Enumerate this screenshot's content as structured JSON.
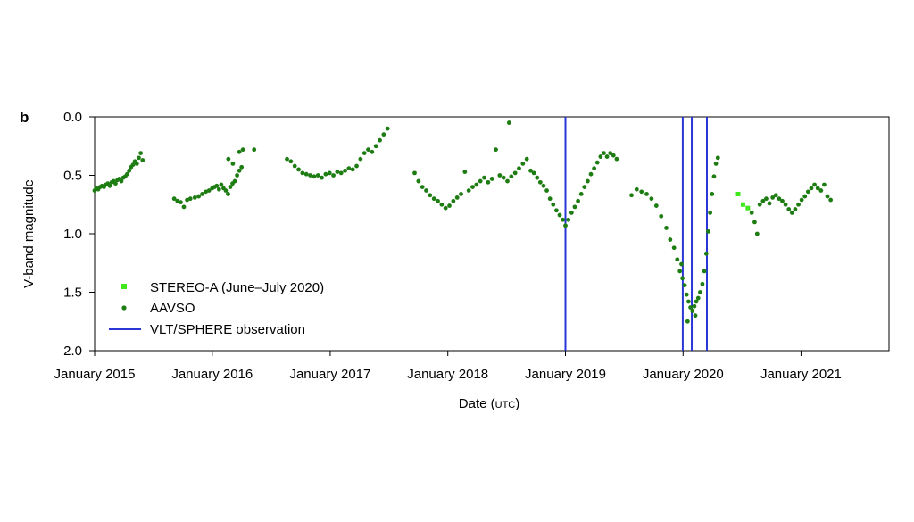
{
  "panel_label": "b",
  "colors": {
    "aavso": "#1e7d12",
    "stereo": "#3fe81c",
    "vlt": "#2a36d6",
    "axis": "#000000"
  },
  "chart_data": {
    "type": "scatter",
    "xlabel": "Date",
    "xlabel_unit": "UTC",
    "ylabel": "V-band magnitude",
    "xlim": [
      "2015-01-01",
      "2021-10-01"
    ],
    "ylim": [
      0.0,
      2.0
    ],
    "y_inverted": true,
    "grid": false,
    "legend_position": "bottom-left",
    "x_ticks": [
      {
        "date": "2015-01-01",
        "label": "January 2015"
      },
      {
        "date": "2016-01-01",
        "label": "January 2016"
      },
      {
        "date": "2017-01-01",
        "label": "January 2017"
      },
      {
        "date": "2018-01-01",
        "label": "January 2018"
      },
      {
        "date": "2019-01-01",
        "label": "January 2019"
      },
      {
        "date": "2020-01-01",
        "label": "January 2020"
      },
      {
        "date": "2021-01-01",
        "label": "January 2021"
      }
    ],
    "y_ticks": [
      {
        "value": 0.0,
        "label": "0.0"
      },
      {
        "value": 0.5,
        "label": "0.5"
      },
      {
        "value": 1.0,
        "label": "1.0"
      },
      {
        "value": 1.5,
        "label": "1.5"
      },
      {
        "value": 2.0,
        "label": "2.0"
      }
    ],
    "legend": [
      {
        "label": "STEREO-A (June–July 2020)",
        "marker": "square"
      },
      {
        "label": "AAVSO",
        "marker": "dot"
      },
      {
        "label": "VLT/SPHERE observation",
        "marker": "line"
      }
    ],
    "vlines": [
      "2019-01-01",
      "2019-12-31",
      "2020-01-28",
      "2020-03-15"
    ],
    "stereo_points": [
      {
        "x": "2020-06-20",
        "y": 0.66
      },
      {
        "x": "2020-07-05",
        "y": 0.75
      },
      {
        "x": "2020-07-20",
        "y": 0.78
      }
    ],
    "aavso_points": [
      {
        "x": "2015-01-01",
        "y": 0.63
      },
      {
        "x": "2015-01-06",
        "y": 0.61
      },
      {
        "x": "2015-01-12",
        "y": 0.62
      },
      {
        "x": "2015-01-18",
        "y": 0.6
      },
      {
        "x": "2015-01-24",
        "y": 0.59
      },
      {
        "x": "2015-01-30",
        "y": 0.6
      },
      {
        "x": "2015-02-05",
        "y": 0.58
      },
      {
        "x": "2015-02-11",
        "y": 0.57
      },
      {
        "x": "2015-02-17",
        "y": 0.59
      },
      {
        "x": "2015-02-23",
        "y": 0.56
      },
      {
        "x": "2015-03-01",
        "y": 0.55
      },
      {
        "x": "2015-03-07",
        "y": 0.57
      },
      {
        "x": "2015-03-13",
        "y": 0.54
      },
      {
        "x": "2015-03-19",
        "y": 0.53
      },
      {
        "x": "2015-03-25",
        "y": 0.55
      },
      {
        "x": "2015-03-31",
        "y": 0.52
      },
      {
        "x": "2015-04-06",
        "y": 0.51
      },
      {
        "x": "2015-04-12",
        "y": 0.49
      },
      {
        "x": "2015-04-18",
        "y": 0.46
      },
      {
        "x": "2015-04-24",
        "y": 0.43
      },
      {
        "x": "2015-04-30",
        "y": 0.41
      },
      {
        "x": "2015-05-06",
        "y": 0.38
      },
      {
        "x": "2015-05-12",
        "y": 0.4
      },
      {
        "x": "2015-05-18",
        "y": 0.35
      },
      {
        "x": "2015-05-24",
        "y": 0.31
      },
      {
        "x": "2015-05-30",
        "y": 0.37
      },
      {
        "x": "2015-09-05",
        "y": 0.7
      },
      {
        "x": "2015-09-15",
        "y": 0.72
      },
      {
        "x": "2015-09-25",
        "y": 0.73
      },
      {
        "x": "2015-10-05",
        "y": 0.77
      },
      {
        "x": "2015-10-15",
        "y": 0.71
      },
      {
        "x": "2015-10-25",
        "y": 0.7
      },
      {
        "x": "2015-11-08",
        "y": 0.69
      },
      {
        "x": "2015-11-20",
        "y": 0.68
      },
      {
        "x": "2015-12-01",
        "y": 0.66
      },
      {
        "x": "2015-12-12",
        "y": 0.64
      },
      {
        "x": "2015-12-22",
        "y": 0.63
      },
      {
        "x": "2016-01-01",
        "y": 0.61
      },
      {
        "x": "2016-01-08",
        "y": 0.6
      },
      {
        "x": "2016-01-15",
        "y": 0.59
      },
      {
        "x": "2016-01-22",
        "y": 0.62
      },
      {
        "x": "2016-01-29",
        "y": 0.58
      },
      {
        "x": "2016-02-05",
        "y": 0.61
      },
      {
        "x": "2016-02-12",
        "y": 0.63
      },
      {
        "x": "2016-02-19",
        "y": 0.66
      },
      {
        "x": "2016-02-26",
        "y": 0.6
      },
      {
        "x": "2016-03-04",
        "y": 0.57
      },
      {
        "x": "2016-03-11",
        "y": 0.55
      },
      {
        "x": "2016-03-18",
        "y": 0.5
      },
      {
        "x": "2016-03-25",
        "y": 0.46
      },
      {
        "x": "2016-04-01",
        "y": 0.43
      },
      {
        "x": "2016-02-20",
        "y": 0.36
      },
      {
        "x": "2016-03-05",
        "y": 0.4
      },
      {
        "x": "2016-03-25",
        "y": 0.3
      },
      {
        "x": "2016-04-05",
        "y": 0.28
      },
      {
        "x": "2016-05-10",
        "y": 0.28
      },
      {
        "x": "2016-08-20",
        "y": 0.36
      },
      {
        "x": "2016-09-01",
        "y": 0.38
      },
      {
        "x": "2016-09-13",
        "y": 0.42
      },
      {
        "x": "2016-09-25",
        "y": 0.45
      },
      {
        "x": "2016-10-07",
        "y": 0.48
      },
      {
        "x": "2016-10-19",
        "y": 0.49
      },
      {
        "x": "2016-10-31",
        "y": 0.5
      },
      {
        "x": "2016-11-12",
        "y": 0.51
      },
      {
        "x": "2016-11-24",
        "y": 0.5
      },
      {
        "x": "2016-12-06",
        "y": 0.52
      },
      {
        "x": "2016-12-18",
        "y": 0.49
      },
      {
        "x": "2016-12-30",
        "y": 0.48
      },
      {
        "x": "2017-01-11",
        "y": 0.5
      },
      {
        "x": "2017-01-23",
        "y": 0.47
      },
      {
        "x": "2017-02-04",
        "y": 0.48
      },
      {
        "x": "2017-02-16",
        "y": 0.46
      },
      {
        "x": "2017-02-28",
        "y": 0.44
      },
      {
        "x": "2017-03-12",
        "y": 0.45
      },
      {
        "x": "2017-03-24",
        "y": 0.42
      },
      {
        "x": "2017-04-05",
        "y": 0.36
      },
      {
        "x": "2017-04-17",
        "y": 0.31
      },
      {
        "x": "2017-04-29",
        "y": 0.28
      },
      {
        "x": "2017-05-11",
        "y": 0.3
      },
      {
        "x": "2017-05-23",
        "y": 0.25
      },
      {
        "x": "2017-06-04",
        "y": 0.2
      },
      {
        "x": "2017-06-16",
        "y": 0.15
      },
      {
        "x": "2017-06-28",
        "y": 0.1
      },
      {
        "x": "2017-09-20",
        "y": 0.48
      },
      {
        "x": "2017-10-02",
        "y": 0.55
      },
      {
        "x": "2017-10-14",
        "y": 0.6
      },
      {
        "x": "2017-10-26",
        "y": 0.63
      },
      {
        "x": "2017-11-07",
        "y": 0.67
      },
      {
        "x": "2017-11-19",
        "y": 0.7
      },
      {
        "x": "2017-12-01",
        "y": 0.72
      },
      {
        "x": "2017-12-13",
        "y": 0.75
      },
      {
        "x": "2017-12-25",
        "y": 0.78
      },
      {
        "x": "2018-01-06",
        "y": 0.76
      },
      {
        "x": "2018-01-18",
        "y": 0.72
      },
      {
        "x": "2018-01-30",
        "y": 0.69
      },
      {
        "x": "2018-02-11",
        "y": 0.66
      },
      {
        "x": "2018-02-23",
        "y": 0.47
      },
      {
        "x": "2018-03-07",
        "y": 0.63
      },
      {
        "x": "2018-03-19",
        "y": 0.6
      },
      {
        "x": "2018-03-31",
        "y": 0.58
      },
      {
        "x": "2018-04-12",
        "y": 0.55
      },
      {
        "x": "2018-04-24",
        "y": 0.52
      },
      {
        "x": "2018-05-06",
        "y": 0.56
      },
      {
        "x": "2018-05-18",
        "y": 0.53
      },
      {
        "x": "2018-05-30",
        "y": 0.28
      },
      {
        "x": "2018-06-11",
        "y": 0.5
      },
      {
        "x": "2018-06-23",
        "y": 0.52
      },
      {
        "x": "2018-07-05",
        "y": 0.55
      },
      {
        "x": "2018-07-17",
        "y": 0.51
      },
      {
        "x": "2018-07-29",
        "y": 0.48
      },
      {
        "x": "2018-08-10",
        "y": 0.44
      },
      {
        "x": "2018-08-22",
        "y": 0.4
      },
      {
        "x": "2018-09-03",
        "y": 0.36
      },
      {
        "x": "2018-07-10",
        "y": 0.05
      },
      {
        "x": "2018-09-15",
        "y": 0.46
      },
      {
        "x": "2018-09-25",
        "y": 0.48
      },
      {
        "x": "2018-10-05",
        "y": 0.52
      },
      {
        "x": "2018-10-15",
        "y": 0.56
      },
      {
        "x": "2018-10-25",
        "y": 0.59
      },
      {
        "x": "2018-11-04",
        "y": 0.63
      },
      {
        "x": "2018-11-14",
        "y": 0.7
      },
      {
        "x": "2018-11-24",
        "y": 0.75
      },
      {
        "x": "2018-12-04",
        "y": 0.8
      },
      {
        "x": "2018-12-14",
        "y": 0.84
      },
      {
        "x": "2018-12-24",
        "y": 0.88
      },
      {
        "x": "2019-01-01",
        "y": 0.93
      },
      {
        "x": "2019-01-10",
        "y": 0.88
      },
      {
        "x": "2019-01-20",
        "y": 0.82
      },
      {
        "x": "2019-01-30",
        "y": 0.77
      },
      {
        "x": "2019-02-09",
        "y": 0.72
      },
      {
        "x": "2019-02-19",
        "y": 0.66
      },
      {
        "x": "2019-03-01",
        "y": 0.6
      },
      {
        "x": "2019-03-11",
        "y": 0.55
      },
      {
        "x": "2019-03-21",
        "y": 0.49
      },
      {
        "x": "2019-03-31",
        "y": 0.44
      },
      {
        "x": "2019-04-10",
        "y": 0.39
      },
      {
        "x": "2019-04-20",
        "y": 0.34
      },
      {
        "x": "2019-04-30",
        "y": 0.31
      },
      {
        "x": "2019-05-10",
        "y": 0.34
      },
      {
        "x": "2019-05-20",
        "y": 0.31
      },
      {
        "x": "2019-05-30",
        "y": 0.33
      },
      {
        "x": "2019-06-09",
        "y": 0.36
      },
      {
        "x": "2019-07-25",
        "y": 0.67
      },
      {
        "x": "2019-08-10",
        "y": 0.62
      },
      {
        "x": "2019-08-25",
        "y": 0.64
      },
      {
        "x": "2019-09-10",
        "y": 0.66
      },
      {
        "x": "2019-09-25",
        "y": 0.7
      },
      {
        "x": "2019-10-10",
        "y": 0.76
      },
      {
        "x": "2019-10-25",
        "y": 0.85
      },
      {
        "x": "2019-11-10",
        "y": 0.95
      },
      {
        "x": "2019-11-22",
        "y": 1.05
      },
      {
        "x": "2019-12-04",
        "y": 1.12
      },
      {
        "x": "2019-12-14",
        "y": 1.22
      },
      {
        "x": "2019-12-22",
        "y": 1.32
      },
      {
        "x": "2019-12-30",
        "y": 1.38
      },
      {
        "x": "2020-01-06",
        "y": 1.44
      },
      {
        "x": "2020-01-12",
        "y": 1.52
      },
      {
        "x": "2020-01-18",
        "y": 1.58
      },
      {
        "x": "2020-01-24",
        "y": 1.63
      },
      {
        "x": "2020-01-30",
        "y": 1.66
      },
      {
        "x": "2020-02-05",
        "y": 1.62
      },
      {
        "x": "2020-02-11",
        "y": 1.58
      },
      {
        "x": "2020-02-17",
        "y": 1.55
      },
      {
        "x": "2020-02-23",
        "y": 1.5
      },
      {
        "x": "2020-03-01",
        "y": 1.43
      },
      {
        "x": "2020-03-07",
        "y": 1.32
      },
      {
        "x": "2020-03-13",
        "y": 1.17
      },
      {
        "x": "2020-03-19",
        "y": 0.98
      },
      {
        "x": "2020-03-25",
        "y": 0.82
      },
      {
        "x": "2020-03-31",
        "y": 0.66
      },
      {
        "x": "2020-04-06",
        "y": 0.51
      },
      {
        "x": "2020-04-12",
        "y": 0.4
      },
      {
        "x": "2020-04-18",
        "y": 0.35
      },
      {
        "x": "2020-01-15",
        "y": 1.75
      },
      {
        "x": "2020-02-08",
        "y": 1.7
      },
      {
        "x": "2019-12-27",
        "y": 1.26
      },
      {
        "x": "2020-08-01",
        "y": 0.82
      },
      {
        "x": "2020-08-10",
        "y": 0.9
      },
      {
        "x": "2020-08-18",
        "y": 1.0
      },
      {
        "x": "2020-08-26",
        "y": 0.75
      },
      {
        "x": "2020-09-05",
        "y": 0.72
      },
      {
        "x": "2020-09-15",
        "y": 0.7
      },
      {
        "x": "2020-09-25",
        "y": 0.74
      },
      {
        "x": "2020-10-05",
        "y": 0.69
      },
      {
        "x": "2020-10-15",
        "y": 0.67
      },
      {
        "x": "2020-10-25",
        "y": 0.7
      },
      {
        "x": "2020-11-04",
        "y": 0.72
      },
      {
        "x": "2020-11-14",
        "y": 0.75
      },
      {
        "x": "2020-11-24",
        "y": 0.79
      },
      {
        "x": "2020-12-04",
        "y": 0.82
      },
      {
        "x": "2020-12-14",
        "y": 0.79
      },
      {
        "x": "2020-12-24",
        "y": 0.75
      },
      {
        "x": "2021-01-03",
        "y": 0.71
      },
      {
        "x": "2021-01-13",
        "y": 0.68
      },
      {
        "x": "2021-01-23",
        "y": 0.64
      },
      {
        "x": "2021-02-02",
        "y": 0.61
      },
      {
        "x": "2021-02-12",
        "y": 0.58
      },
      {
        "x": "2021-02-22",
        "y": 0.61
      },
      {
        "x": "2021-03-04",
        "y": 0.63
      },
      {
        "x": "2021-03-14",
        "y": 0.58
      },
      {
        "x": "2021-03-24",
        "y": 0.68
      },
      {
        "x": "2021-04-03",
        "y": 0.71
      }
    ]
  }
}
